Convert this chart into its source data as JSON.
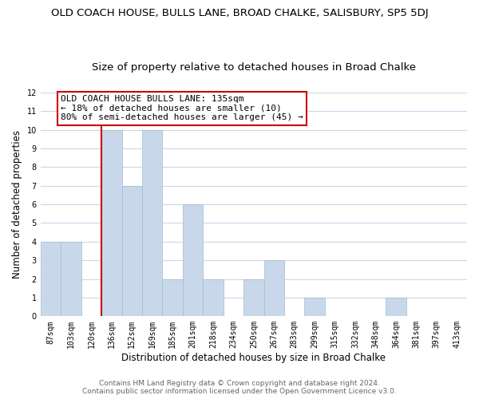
{
  "title": "OLD COACH HOUSE, BULLS LANE, BROAD CHALKE, SALISBURY, SP5 5DJ",
  "subtitle": "Size of property relative to detached houses in Broad Chalke",
  "xlabel": "Distribution of detached houses by size in Broad Chalke",
  "ylabel": "Number of detached properties",
  "bin_labels": [
    "87sqm",
    "103sqm",
    "120sqm",
    "136sqm",
    "152sqm",
    "169sqm",
    "185sqm",
    "201sqm",
    "218sqm",
    "234sqm",
    "250sqm",
    "267sqm",
    "283sqm",
    "299sqm",
    "315sqm",
    "332sqm",
    "348sqm",
    "364sqm",
    "381sqm",
    "397sqm",
    "413sqm"
  ],
  "bar_heights": [
    4,
    4,
    0,
    10,
    7,
    10,
    2,
    6,
    2,
    0,
    2,
    3,
    0,
    1,
    0,
    0,
    0,
    1,
    0,
    0,
    0
  ],
  "bar_color": "#c8d8ea",
  "bar_edge_color": "#a0bcd0",
  "grid_color": "#c8d8ea",
  "vline_index": 3,
  "vline_color": "#cc0000",
  "annotation_text": "OLD COACH HOUSE BULLS LANE: 135sqm\n← 18% of detached houses are smaller (10)\n80% of semi-detached houses are larger (45) →",
  "ylim": [
    0,
    12
  ],
  "yticks": [
    0,
    1,
    2,
    3,
    4,
    5,
    6,
    7,
    8,
    9,
    10,
    11,
    12
  ],
  "footer_line1": "Contains HM Land Registry data © Crown copyright and database right 2024.",
  "footer_line2": "Contains public sector information licensed under the Open Government Licence v3.0.",
  "background_color": "#ffffff",
  "title_fontsize": 9.5,
  "subtitle_fontsize": 9.5,
  "xlabel_fontsize": 8.5,
  "ylabel_fontsize": 8.5,
  "tick_fontsize": 7,
  "annotation_fontsize": 8,
  "footer_fontsize": 6.5
}
